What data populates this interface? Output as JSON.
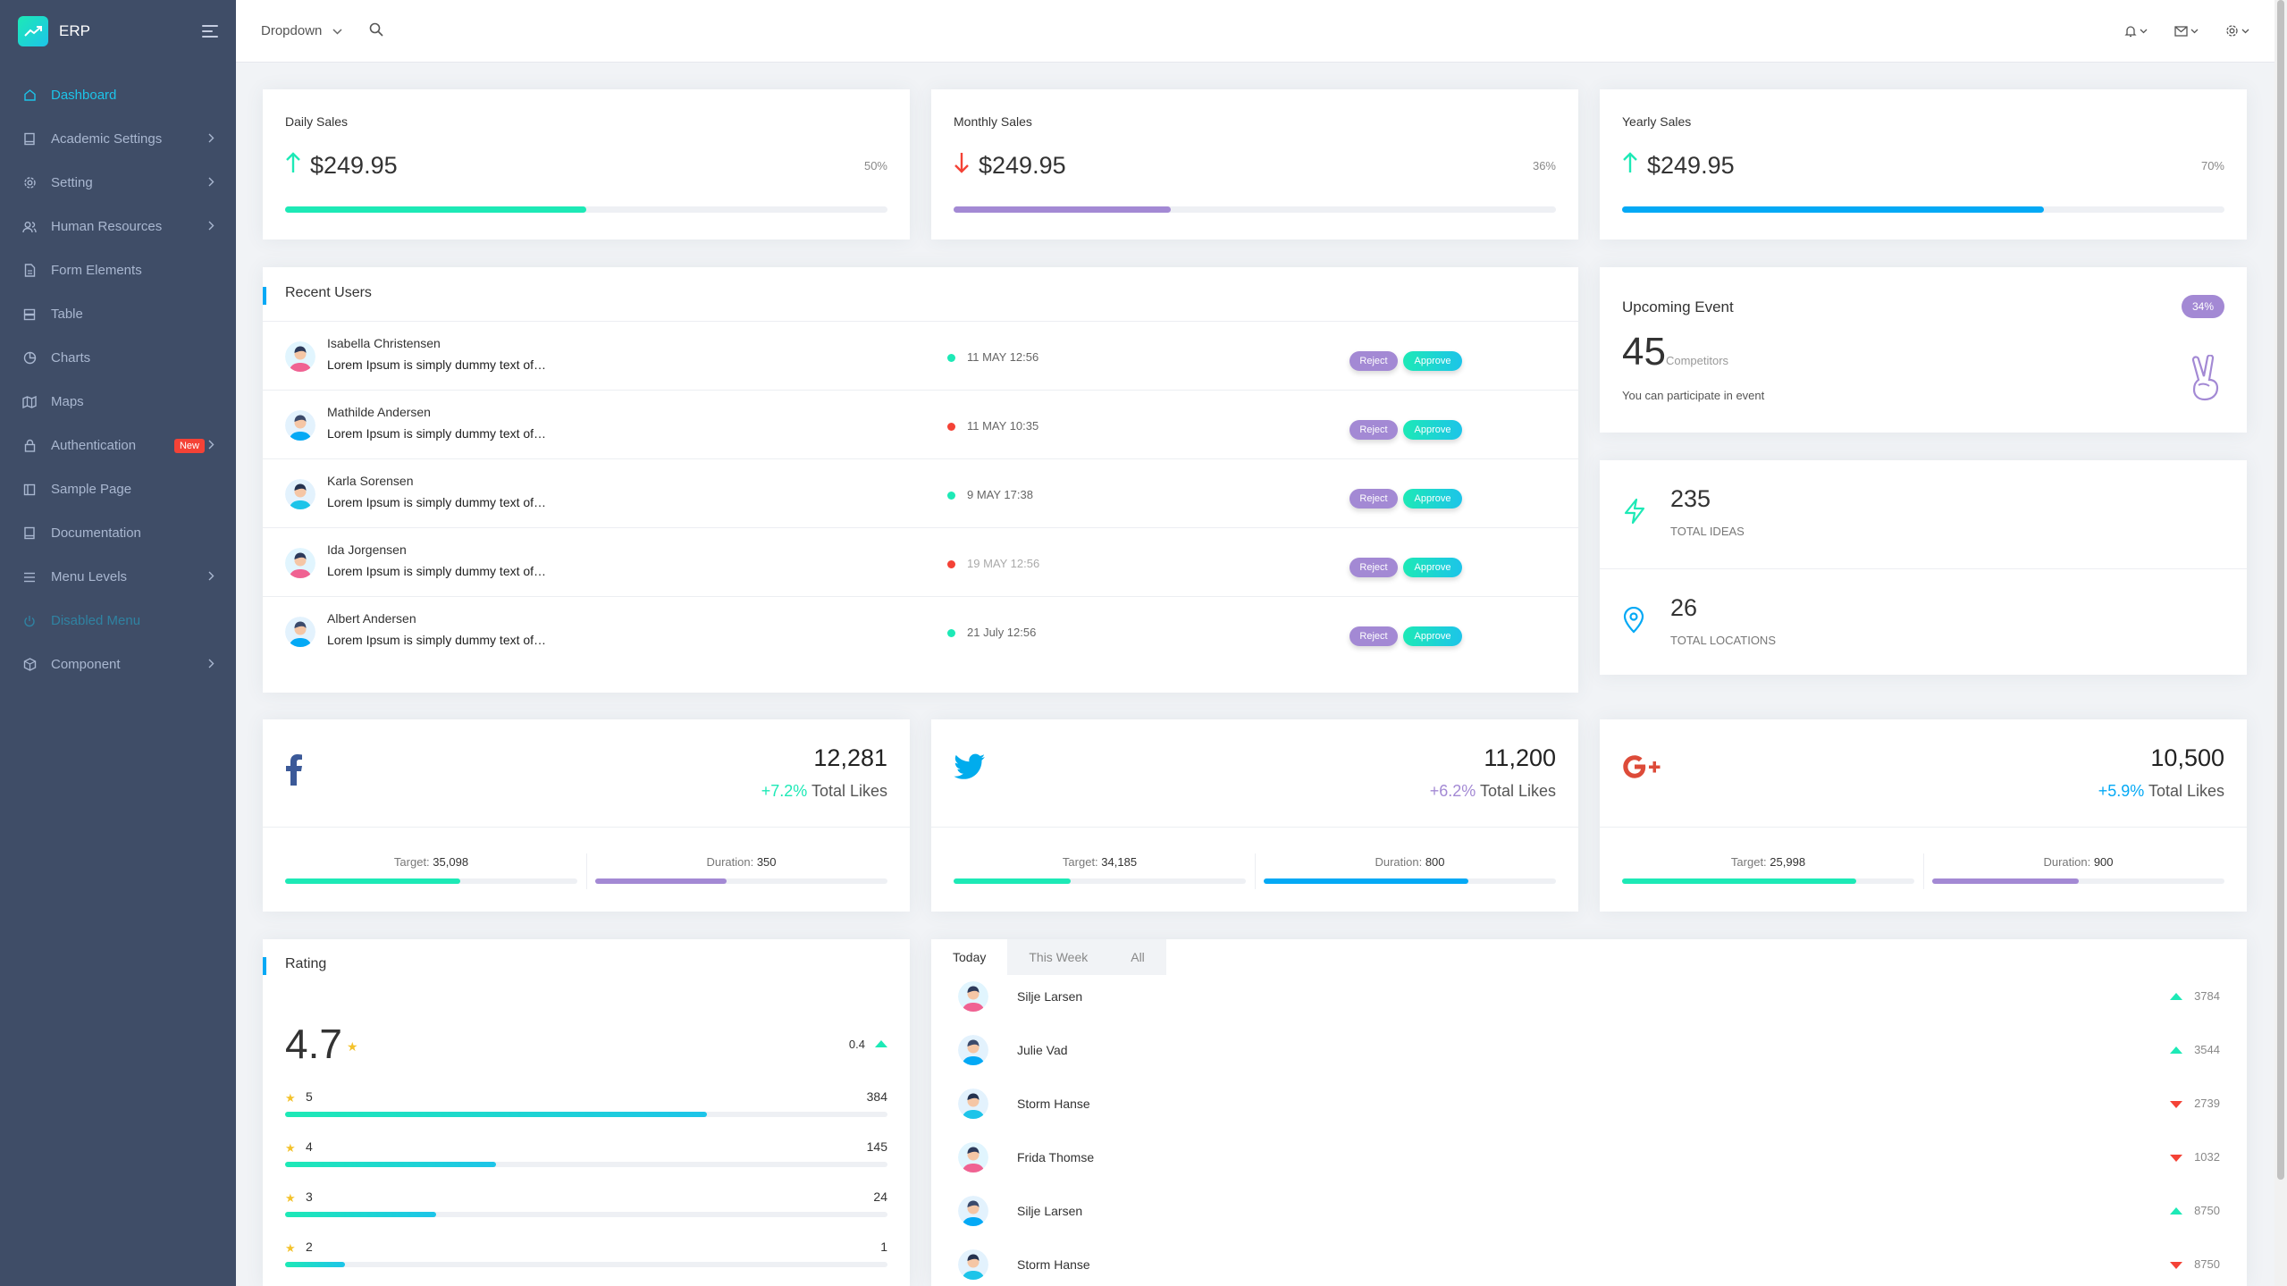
{
  "brand": {
    "name": "ERP"
  },
  "sidebar": {
    "items": [
      {
        "label": "Dashboard",
        "icon": "home-icon",
        "state": "active",
        "chevron": false,
        "badge": ""
      },
      {
        "label": "Academic Settings",
        "icon": "book-icon",
        "state": "",
        "chevron": true,
        "badge": ""
      },
      {
        "label": "Setting",
        "icon": "gear-icon",
        "state": "",
        "chevron": true,
        "badge": ""
      },
      {
        "label": "Human Resources",
        "icon": "users-icon",
        "state": "",
        "chevron": true,
        "badge": ""
      },
      {
        "label": "Form Elements",
        "icon": "file-text-icon",
        "state": "",
        "chevron": false,
        "badge": ""
      },
      {
        "label": "Table",
        "icon": "server-icon",
        "state": "",
        "chevron": false,
        "badge": ""
      },
      {
        "label": "Charts",
        "icon": "pie-chart-icon",
        "state": "",
        "chevron": false,
        "badge": ""
      },
      {
        "label": "Maps",
        "icon": "map-icon",
        "state": "",
        "chevron": false,
        "badge": ""
      },
      {
        "label": "Authentication",
        "icon": "lock-icon",
        "state": "",
        "chevron": true,
        "badge": "New"
      },
      {
        "label": "Sample Page",
        "icon": "sidebar-icon",
        "state": "",
        "chevron": false,
        "badge": ""
      },
      {
        "label": "Documentation",
        "icon": "book-icon",
        "state": "",
        "chevron": false,
        "badge": ""
      },
      {
        "label": "Menu Levels",
        "icon": "menu-icon",
        "state": "",
        "chevron": true,
        "badge": ""
      },
      {
        "label": "Disabled Menu",
        "icon": "power-icon",
        "state": "disabled",
        "chevron": false,
        "badge": ""
      },
      {
        "label": "Component",
        "icon": "box-icon",
        "state": "",
        "chevron": true,
        "badge": ""
      }
    ]
  },
  "header": {
    "dropdown_label": "Dropdown"
  },
  "sales": [
    {
      "title": "Daily Sales",
      "amount": "$249.95",
      "pct": "50%",
      "progress": 50,
      "trend": "up",
      "color": "#1de9b6"
    },
    {
      "title": "Monthly Sales",
      "amount": "$249.95",
      "pct": "36%",
      "progress": 36,
      "trend": "down",
      "color": "#a389d4"
    },
    {
      "title": "Yearly Sales",
      "amount": "$249.95",
      "pct": "70%",
      "progress": 70,
      "trend": "up",
      "color": "#04a9f5"
    }
  ],
  "recent_users": {
    "title": "Recent Users",
    "reject_label": "Reject",
    "approve_label": "Approve",
    "rows": [
      {
        "name": "Isabella Christensen",
        "desc": "Lorem Ipsum is simply dummy text of…",
        "time": "11 MAY 12:56",
        "status": "green",
        "muted": false,
        "avatar": "female"
      },
      {
        "name": "Mathilde Andersen",
        "desc": "Lorem Ipsum is simply dummy text of…",
        "time": "11 MAY 10:35",
        "status": "red",
        "muted": false,
        "avatar": "male"
      },
      {
        "name": "Karla Sorensen",
        "desc": "Lorem Ipsum is simply dummy text of…",
        "time": "9 MAY 17:38",
        "status": "green",
        "muted": false,
        "avatar": "male2"
      },
      {
        "name": "Ida Jorgensen",
        "desc": "Lorem Ipsum is simply dummy text of…",
        "time": "19 MAY 12:56",
        "status": "red",
        "muted": true,
        "avatar": "female"
      },
      {
        "name": "Albert Andersen",
        "desc": "Lorem Ipsum is simply dummy text of…",
        "time": "21 July 12:56",
        "status": "green",
        "muted": false,
        "avatar": "male"
      }
    ]
  },
  "upcoming": {
    "title": "Upcoming Event",
    "badge": "34%",
    "number": "45",
    "unit": "Competitors",
    "note": "You can participate in event"
  },
  "stats": [
    {
      "value": "235",
      "label": "TOTAL IDEAS",
      "icon": "zap-icon"
    },
    {
      "value": "26",
      "label": "TOTAL LOCATIONS",
      "icon": "map-pin-icon"
    }
  ],
  "social": [
    {
      "icon": "facebook-icon",
      "value": "12,281",
      "change": "+7.2%",
      "change_color": "#1de9b6",
      "likes_label": "Total Likes",
      "target_label": "Target:",
      "target": "35,098",
      "duration_label": "Duration:",
      "duration": "350",
      "target_progress": 60,
      "duration_progress": 45,
      "target_color": "#1de9b6",
      "duration_color": "#a389d4"
    },
    {
      "icon": "twitter-icon",
      "value": "11,200",
      "change": "+6.2%",
      "change_color": "#a389d4",
      "likes_label": "Total Likes",
      "target_label": "Target:",
      "target": "34,185",
      "duration_label": "Duration:",
      "duration": "800",
      "target_progress": 40,
      "duration_progress": 70,
      "target_color": "#1de9b6",
      "duration_color": "#04a9f5"
    },
    {
      "icon": "google-plus-icon",
      "value": "10,500",
      "change": "+5.9%",
      "change_color": "#04a9f5",
      "likes_label": "Total Likes",
      "target_label": "Target:",
      "target": "25,998",
      "duration_label": "Duration:",
      "duration": "900",
      "target_progress": 80,
      "duration_progress": 50,
      "target_color": "#1de9b6",
      "duration_color": "#a389d4"
    }
  ],
  "rating": {
    "title": "Rating",
    "score": "4.7",
    "change": "0.4",
    "rows": [
      {
        "stars": "5",
        "count": "384",
        "progress": 70
      },
      {
        "stars": "4",
        "count": "145",
        "progress": 35
      },
      {
        "stars": "3",
        "count": "24",
        "progress": 25
      },
      {
        "stars": "2",
        "count": "1",
        "progress": 10
      }
    ]
  },
  "leaderboard": {
    "tabs": [
      "Today",
      "This Week",
      "All"
    ],
    "active_tab": 0,
    "rows": [
      {
        "name": "Silje Larsen",
        "value": "3784",
        "trend": "up",
        "avatar": "female"
      },
      {
        "name": "Julie Vad",
        "value": "3544",
        "trend": "up",
        "avatar": "male"
      },
      {
        "name": "Storm Hanse",
        "value": "2739",
        "trend": "down",
        "avatar": "male2"
      },
      {
        "name": "Frida Thomse",
        "value": "1032",
        "trend": "down",
        "avatar": "female"
      },
      {
        "name": "Silje Larsen",
        "value": "8750",
        "trend": "up",
        "avatar": "male"
      },
      {
        "name": "Storm Hanse",
        "value": "8750",
        "trend": "down",
        "avatar": "male2"
      }
    ]
  }
}
